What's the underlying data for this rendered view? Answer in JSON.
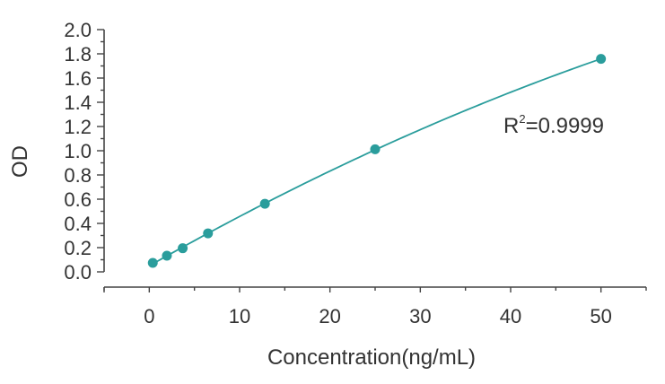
{
  "chart_data": {
    "type": "scatter",
    "xlabel": "Concentration(ng/mL)",
    "ylabel": "OD",
    "xlim": [
      -5,
      55
    ],
    "ylim": [
      0,
      2.0
    ],
    "x_ticks": [
      0,
      10,
      20,
      30,
      40,
      50
    ],
    "y_ticks": [
      0.0,
      0.2,
      0.4,
      0.6,
      0.8,
      1.0,
      1.2,
      1.4,
      1.6,
      1.8,
      2.0
    ],
    "grid": false,
    "series": [
      {
        "points": [
          {
            "x": 0.39,
            "y": 0.074
          },
          {
            "x": 1.95,
            "y": 0.133
          },
          {
            "x": 3.7,
            "y": 0.195
          },
          {
            "x": 6.5,
            "y": 0.318
          },
          {
            "x": 12.8,
            "y": 0.562
          },
          {
            "x": 25.0,
            "y": 1.012
          },
          {
            "x": 50.0,
            "y": 1.758
          }
        ],
        "fit_curve": true,
        "color": "#2a9d9c"
      }
    ],
    "annotation": {
      "r_label": "R",
      "r_sup": "2",
      "r_value": "=0.9999"
    }
  }
}
